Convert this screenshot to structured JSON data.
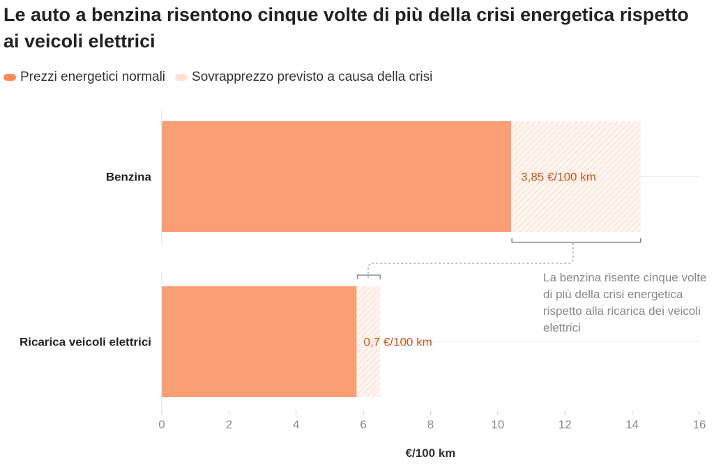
{
  "title": "Le auto a benzina risentono cinque volte di più della crisi energetica rispetto ai veicoli elettrici",
  "chart_data": {
    "type": "bar",
    "orientation": "horizontal",
    "stacked": true,
    "categories": [
      "Benzina",
      "Ricarica veicoli elettrici"
    ],
    "series": [
      {
        "name": "Prezzi energetici normali",
        "values": [
          10.4,
          5.8
        ],
        "color": "#fa9f75"
      },
      {
        "name": "Sovrapprezzo previsto a causa della crisi",
        "values": [
          3.85,
          0.7
        ],
        "color": "#fde3d6",
        "pattern": "hatched"
      }
    ],
    "data_labels": [
      "3,85 €/100 km",
      "0,7 €/100 km"
    ],
    "xlabel": "€/100 km",
    "xlim": [
      0,
      16
    ],
    "xticks": [
      0,
      2,
      4,
      6,
      8,
      10,
      12,
      14,
      16
    ],
    "legend": "top-left",
    "annotation": "La benzina risente cinque volte di più della crisi energetica rispetto alla ricarica dei veicoli elettrici",
    "label_color": "#c8531a"
  }
}
